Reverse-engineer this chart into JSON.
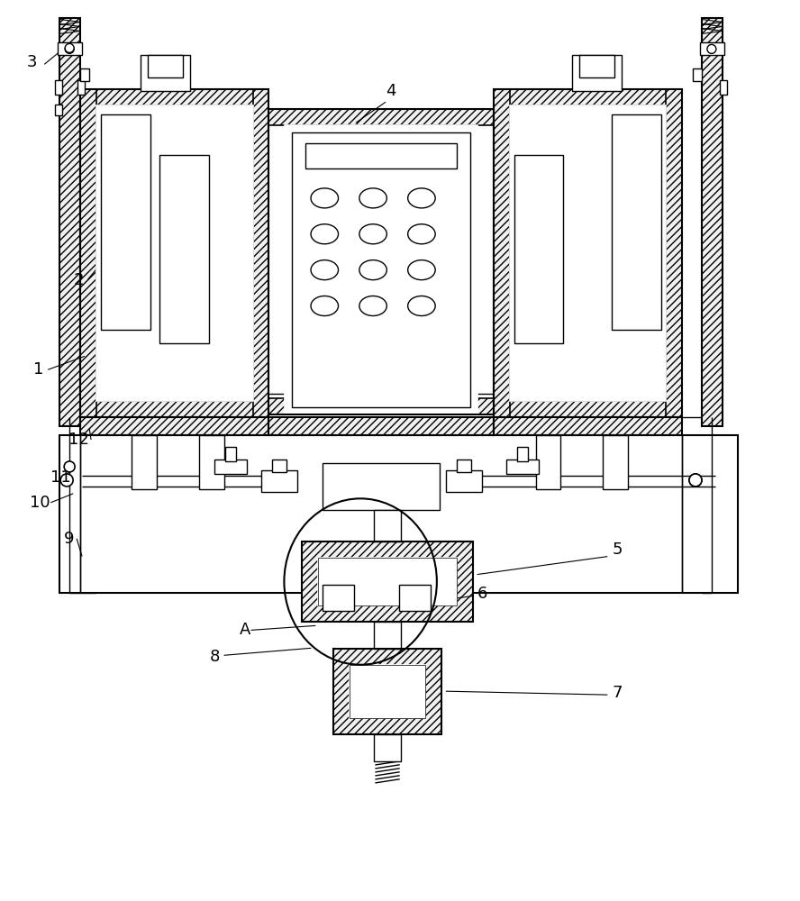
{
  "background_color": "#ffffff",
  "line_color": "#000000",
  "fig_width": 8.88,
  "fig_height": 10.0,
  "hatch_pattern": "////",
  "lw_main": 1.5,
  "lw_thin": 1.0,
  "lw_label": 0.8
}
